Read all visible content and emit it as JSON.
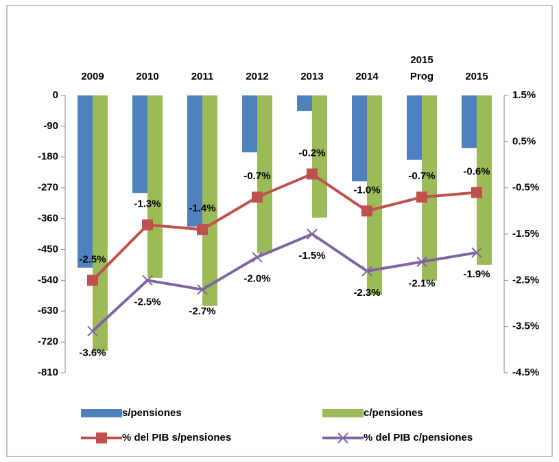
{
  "chart_data": {
    "type": "bar_line",
    "categories": [
      "2009",
      "2010",
      "2011",
      "2012",
      "2013",
      "2014",
      "2015 Prog",
      "2015"
    ],
    "series": [
      {
        "name": "s/pensiones",
        "color": "#4f81bd",
        "type": "bar",
        "values": [
          -503,
          -285,
          -383,
          -166,
          -46,
          -251,
          -188,
          -154
        ]
      },
      {
        "name": "c/pensiones",
        "color": "#9bbb59",
        "type": "bar",
        "values": [
          -746,
          -533,
          -615,
          -461,
          -357,
          -583,
          -541,
          -495
        ]
      },
      {
        "name": "% del PIB s/pensiones",
        "color": "#c0504d",
        "type": "line",
        "marker": "square",
        "axis": "y2",
        "values": [
          -2.5,
          -1.3,
          -1.4,
          -0.7,
          -0.2,
          -1.0,
          -0.7,
          -0.6
        ],
        "value_labels": [
          "-2.5%",
          "-1.3%",
          "-1.4%",
          "-0.7%",
          "-0.2%",
          "-1.0%",
          "-0.7%",
          "-0.6%"
        ]
      },
      {
        "name": "% del PIB c/pensiones",
        "color": "#8064a2",
        "type": "line",
        "marker": "x",
        "axis": "y2",
        "values": [
          -3.6,
          -2.5,
          -2.7,
          -2.0,
          -1.5,
          -2.3,
          -2.1,
          -1.9
        ],
        "value_labels": [
          "-3.6%",
          "-2.5%",
          "-2.7%",
          "-2.0%",
          "-1.5%",
          "-2.3%",
          "-2.1%",
          "-1.9%"
        ]
      }
    ],
    "ylim": [
      -810,
      0
    ],
    "yticks": [
      0,
      -90,
      -180,
      -270,
      -360,
      -450,
      -540,
      -630,
      -720,
      -810
    ],
    "y2lim": [
      -4.5,
      1.5
    ],
    "y2ticks": [
      {
        "value": 1.5,
        "label": "1.5%"
      },
      {
        "value": 0.5,
        "label": "0.5%"
      },
      {
        "value": -0.5,
        "label": "-0.5%"
      },
      {
        "value": -1.5,
        "label": "-1.5%"
      },
      {
        "value": -2.5,
        "label": "-2.5%"
      },
      {
        "value": -3.5,
        "label": "-3.5%"
      },
      {
        "value": -4.5,
        "label": "-4.5%"
      }
    ],
    "legend": "bottom"
  }
}
